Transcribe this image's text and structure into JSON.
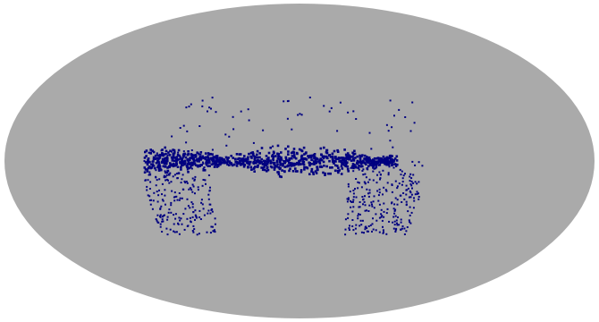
{
  "map": {
    "projection": "mollweide",
    "background_color": "#aaaaaa",
    "point_color": "#000080",
    "page_color": "#ffffff",
    "regions": [
      {
        "name": "central-band",
        "lon": [
          -95,
          60
        ],
        "lat": [
          -8,
          8
        ],
        "density": "high"
      },
      {
        "name": "left-arm",
        "lon": [
          -95,
          -55
        ],
        "lat": [
          -35,
          5
        ],
        "density": "medium"
      },
      {
        "name": "right-arm",
        "lon": [
          30,
          75
        ],
        "lat": [
          -35,
          0
        ],
        "density": "medium"
      },
      {
        "name": "upper-scatter",
        "lon": [
          -80,
          80
        ],
        "lat": [
          5,
          30
        ],
        "density": "low"
      }
    ]
  }
}
